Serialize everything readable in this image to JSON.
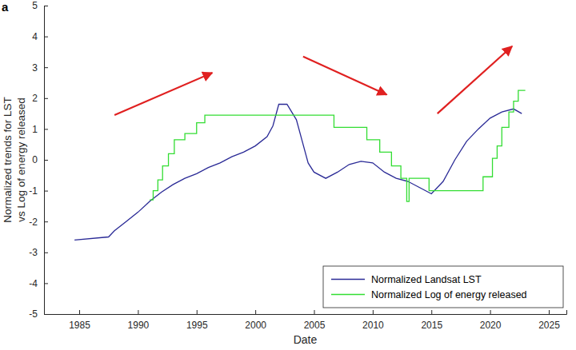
{
  "chart_data": {
    "type": "line",
    "panel_label": "a",
    "x_label": "Date",
    "y_label": [
      "Normalized trends for LST",
      "vs Log of energy released"
    ],
    "xlim": [
      1982,
      2026.5
    ],
    "xticks": [
      1985,
      1990,
      1995,
      2000,
      2005,
      2010,
      2015,
      2020,
      2025
    ],
    "ylim": [
      -5,
      5
    ],
    "yticks": [
      -5,
      -4,
      -3,
      -2,
      -1,
      0,
      1,
      2,
      3,
      4,
      5
    ],
    "grid": false,
    "legend": "lower right",
    "series": [
      {
        "name": "Normalized Landsat LST",
        "color": "#2a2a96",
        "line_style": "solid",
        "x": [
          1984.6,
          1987.5,
          1988,
          1989,
          1990,
          1991,
          1992,
          1993,
          1994,
          1995,
          1996,
          1997,
          1998,
          1999,
          2000,
          2001,
          2001.5,
          2002,
          2002.7,
          2003.5,
          2004,
          2004.5,
          2005,
          2006,
          2007,
          2008,
          2009,
          2010,
          2011,
          2012,
          2013,
          2014,
          2015,
          2016,
          2017,
          2018,
          2019,
          2020,
          2021,
          2022,
          2022.7
        ],
        "values": [
          -2.6,
          -2.5,
          -2.3,
          -2.0,
          -1.7,
          -1.35,
          -1.05,
          -0.8,
          -0.6,
          -0.45,
          -0.25,
          -0.1,
          0.1,
          0.25,
          0.45,
          0.75,
          1.1,
          1.8,
          1.8,
          1.3,
          0.6,
          -0.1,
          -0.4,
          -0.6,
          -0.4,
          -0.15,
          -0.05,
          -0.1,
          -0.4,
          -0.6,
          -0.7,
          -0.9,
          -1.1,
          -0.7,
          0.0,
          0.6,
          1.0,
          1.35,
          1.55,
          1.65,
          1.5
        ]
      },
      {
        "name": "Normalized Log of energy released",
        "color": "#33dd33",
        "line_style": "steps",
        "x": [
          1991.0,
          1991.3,
          1991.7,
          1992.1,
          1992.6,
          1993.1,
          1994.0,
          1995.0,
          1995.7,
          2006.7,
          2009.5,
          2010.6,
          2011.6,
          2012.4,
          2012.9,
          2013.1,
          2014.8,
          2019.4,
          2020.2,
          2020.6,
          2021.0,
          2021.6,
          2022.0,
          2022.4,
          2023.0
        ],
        "values": [
          -1.3,
          -1.0,
          -0.65,
          -0.2,
          0.2,
          0.65,
          0.85,
          1.2,
          1.45,
          1.05,
          0.65,
          0.25,
          -0.2,
          -0.6,
          -1.35,
          -0.6,
          -1.0,
          -0.55,
          0.05,
          0.45,
          1.05,
          1.55,
          1.9,
          2.25,
          2.25
        ]
      }
    ]
  }
}
